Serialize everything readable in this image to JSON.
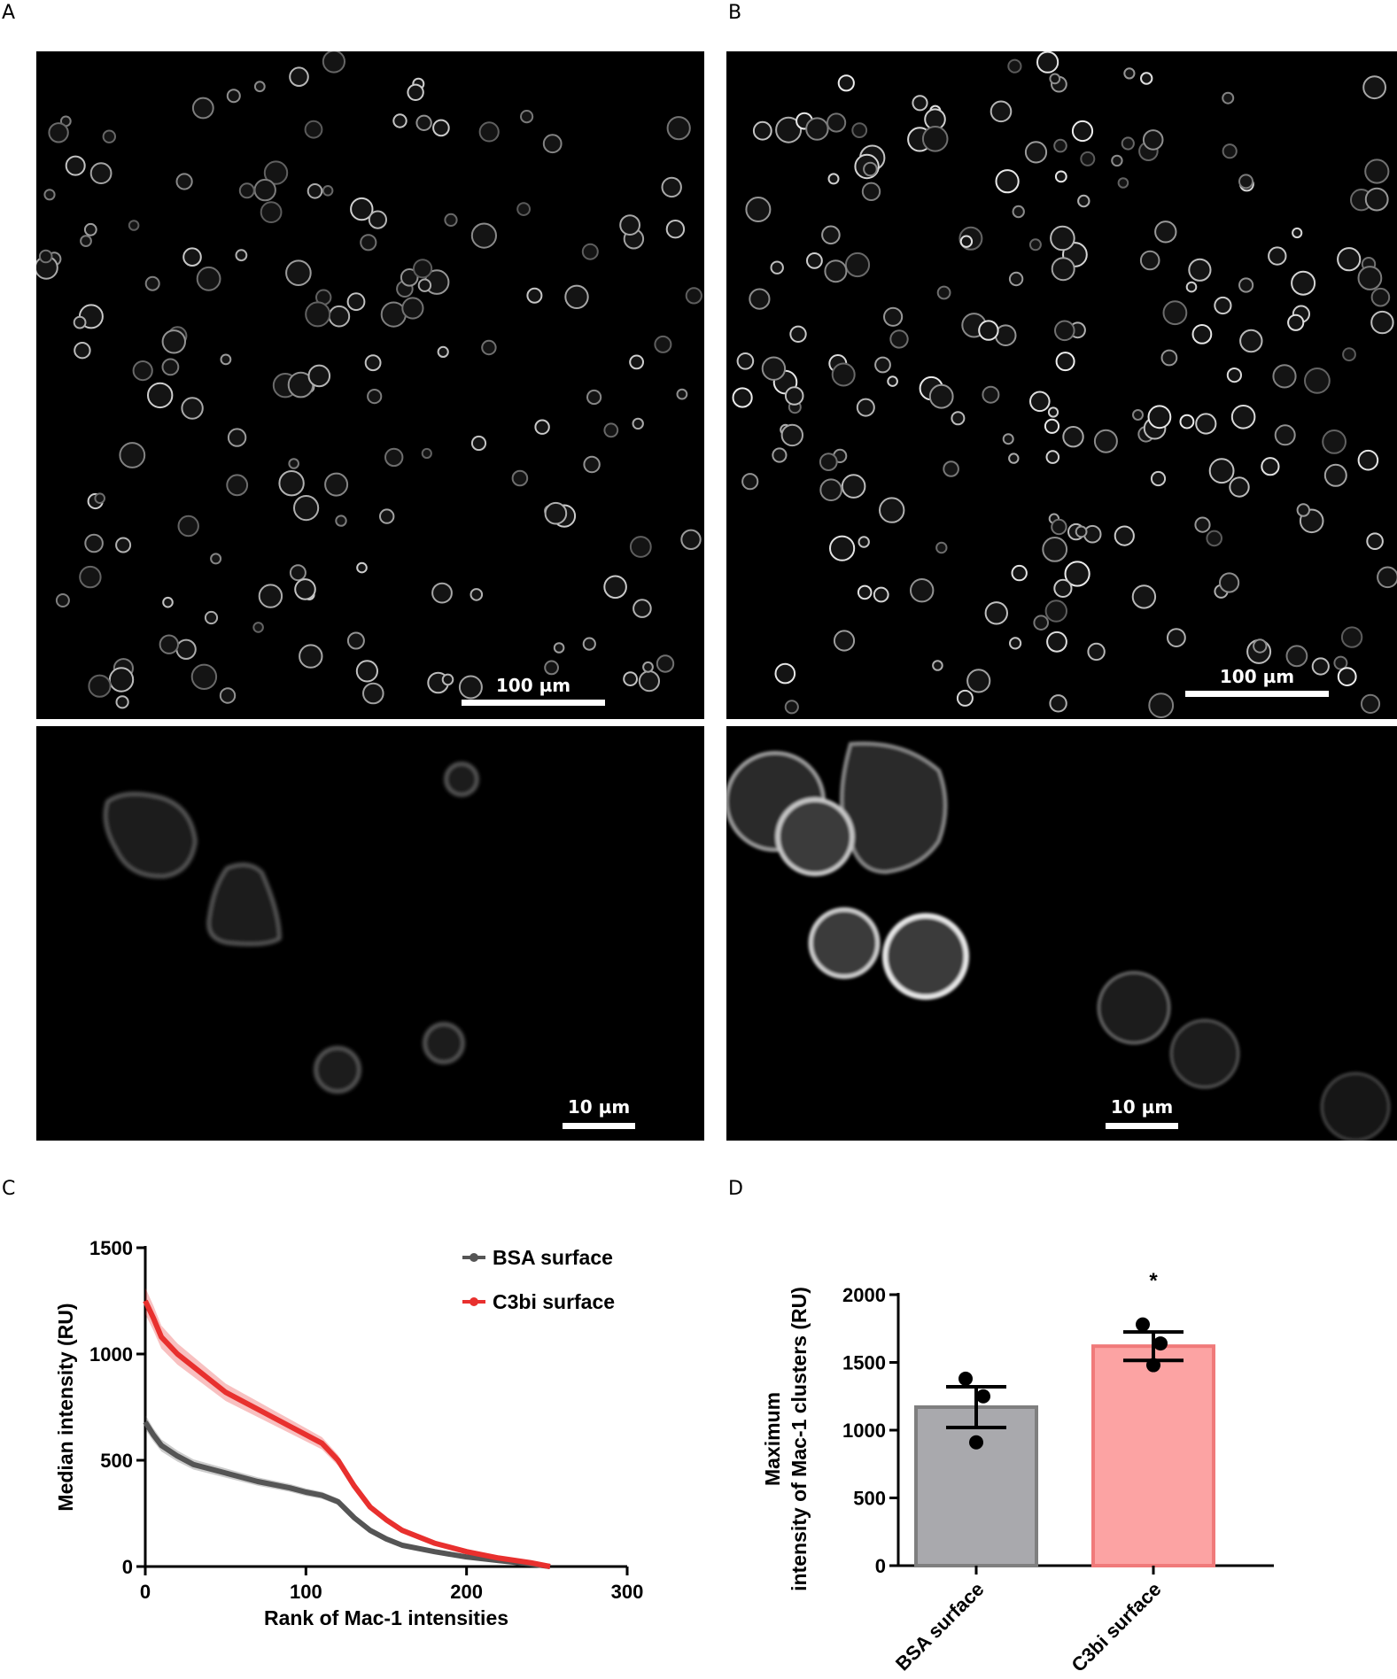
{
  "panels": {
    "A": {
      "letter": "A",
      "top_scale": "100 µm",
      "bottom_scale": "10 µm"
    },
    "B": {
      "letter": "B",
      "top_scale": "100 µm",
      "bottom_scale": "10 µm"
    },
    "C": {
      "letter": "C"
    },
    "D": {
      "letter": "D"
    }
  },
  "chart_data": [
    {
      "panel": "C",
      "type": "line",
      "title": "",
      "xlabel": "Rank of Mac-1 intensities",
      "ylabel": "Median intensity (RU)",
      "xlim": [
        0,
        300
      ],
      "ylim": [
        0,
        1500
      ],
      "xticks": [
        "0",
        "100",
        "200",
        "300"
      ],
      "yticks": [
        "0",
        "500",
        "1000",
        "1500"
      ],
      "legend_position": "top-right",
      "series": [
        {
          "name": "BSA surface",
          "color": "#555555",
          "x": [
            0,
            5,
            10,
            20,
            30,
            50,
            70,
            90,
            100,
            110,
            120,
            130,
            140,
            150,
            160,
            180,
            200,
            220,
            240,
            252
          ],
          "y": [
            680,
            620,
            570,
            520,
            480,
            440,
            400,
            370,
            350,
            335,
            305,
            230,
            170,
            130,
            100,
            70,
            45,
            28,
            12,
            0
          ]
        },
        {
          "name": "C3bi surface",
          "color": "#e8302e",
          "x": [
            0,
            5,
            10,
            20,
            30,
            40,
            50,
            60,
            70,
            80,
            90,
            100,
            110,
            120,
            130,
            140,
            150,
            160,
            180,
            200,
            220,
            240,
            252
          ],
          "y": [
            1250,
            1170,
            1080,
            1000,
            940,
            880,
            820,
            780,
            740,
            700,
            660,
            620,
            580,
            500,
            380,
            280,
            220,
            170,
            110,
            70,
            40,
            18,
            0
          ]
        }
      ]
    },
    {
      "panel": "D",
      "type": "bar",
      "title": "",
      "ylabel_line1": "Maximum",
      "ylabel_line2": "intensity of Mac-1 clusters (RU)",
      "ylim": [
        0,
        2000
      ],
      "yticks": [
        "0",
        "500",
        "1000",
        "1500",
        "2000"
      ],
      "categories": [
        "BSA surface",
        "C3bi surface"
      ],
      "values": [
        1170,
        1620
      ],
      "sem": [
        150,
        105
      ],
      "points": [
        [
          1380,
          1250,
          910
        ],
        [
          1780,
          1640,
          1480
        ]
      ],
      "bar_fill": [
        "#a9a9ad",
        "#fca3a3"
      ],
      "bar_edge": [
        "#7f7f7f",
        "#f07a7a"
      ],
      "significance": "*"
    }
  ]
}
